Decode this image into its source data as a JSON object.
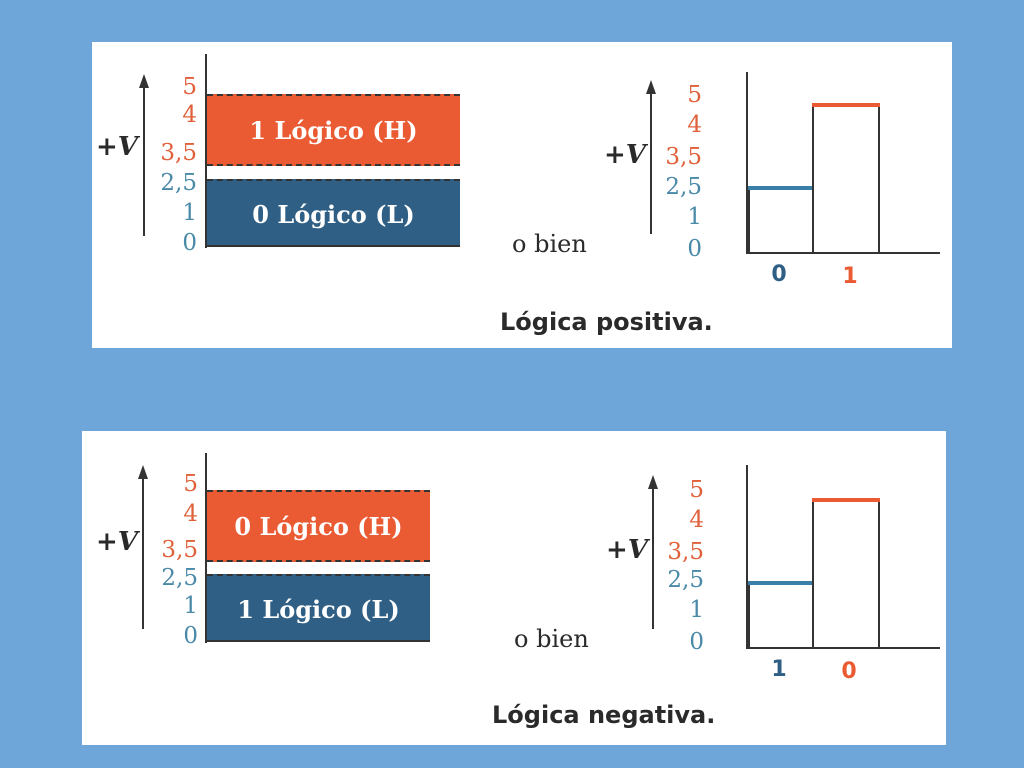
{
  "voltage_label": {
    "sign": "+",
    "var": "V"
  },
  "levels": {
    "left_ticks": [
      "5",
      "4",
      "3,5",
      "2,5",
      "1",
      "0"
    ],
    "right_ticks": [
      "5",
      "4",
      "3,5",
      "2,5",
      "1",
      "0"
    ]
  },
  "connector": "o bien",
  "colors": {
    "background": "#6fa6d9",
    "high": "#ea5a33",
    "low_band": "#2f5f84",
    "low_tick": "#4a8aa8"
  },
  "positive": {
    "high_band": "1 Lógico (H)",
    "low_band": "0 Lógico (L)",
    "bar_labels": [
      "0",
      "1"
    ],
    "caption": "Lógica positiva."
  },
  "negative": {
    "high_band": "0 Lógico (H)",
    "low_band": "1 Lógico (L)",
    "bar_labels": [
      "1",
      "0"
    ],
    "caption": "Lógica negativa."
  }
}
